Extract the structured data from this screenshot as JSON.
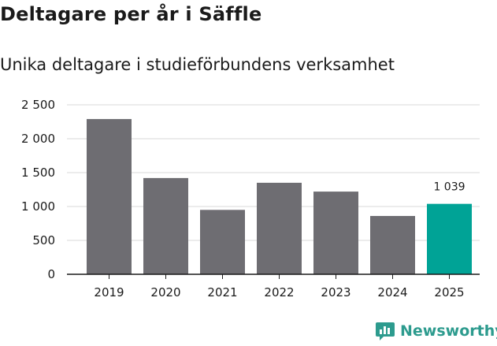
{
  "colors": {
    "bar": "#6e6d72",
    "highlight": "#00a396",
    "grid": "#d9d9d9",
    "axis": "#1a1a1a",
    "brand": "#2d9b8e"
  },
  "brand": {
    "name": "Newsworthy",
    "icon": "chart-logo-icon"
  },
  "chart_data": {
    "type": "bar",
    "title": "Deltagare per år i Säffle",
    "subtitle": "Unika deltagare i studieförbundens verksamhet",
    "xlabel": "",
    "ylabel": "",
    "categories": [
      "2019",
      "2020",
      "2021",
      "2022",
      "2023",
      "2024",
      "2025"
    ],
    "values": [
      2290,
      1420,
      950,
      1350,
      1220,
      860,
      1039
    ],
    "highlight_index": 6,
    "highlight_label": "1 039",
    "ylim": [
      0,
      2500
    ],
    "yticks": [
      0,
      500,
      1000,
      1500,
      2000,
      2500
    ],
    "ytick_labels": [
      "0",
      "500",
      "1 000",
      "1 500",
      "2 000",
      "2 500"
    ],
    "grid": true,
    "legend": "none"
  }
}
